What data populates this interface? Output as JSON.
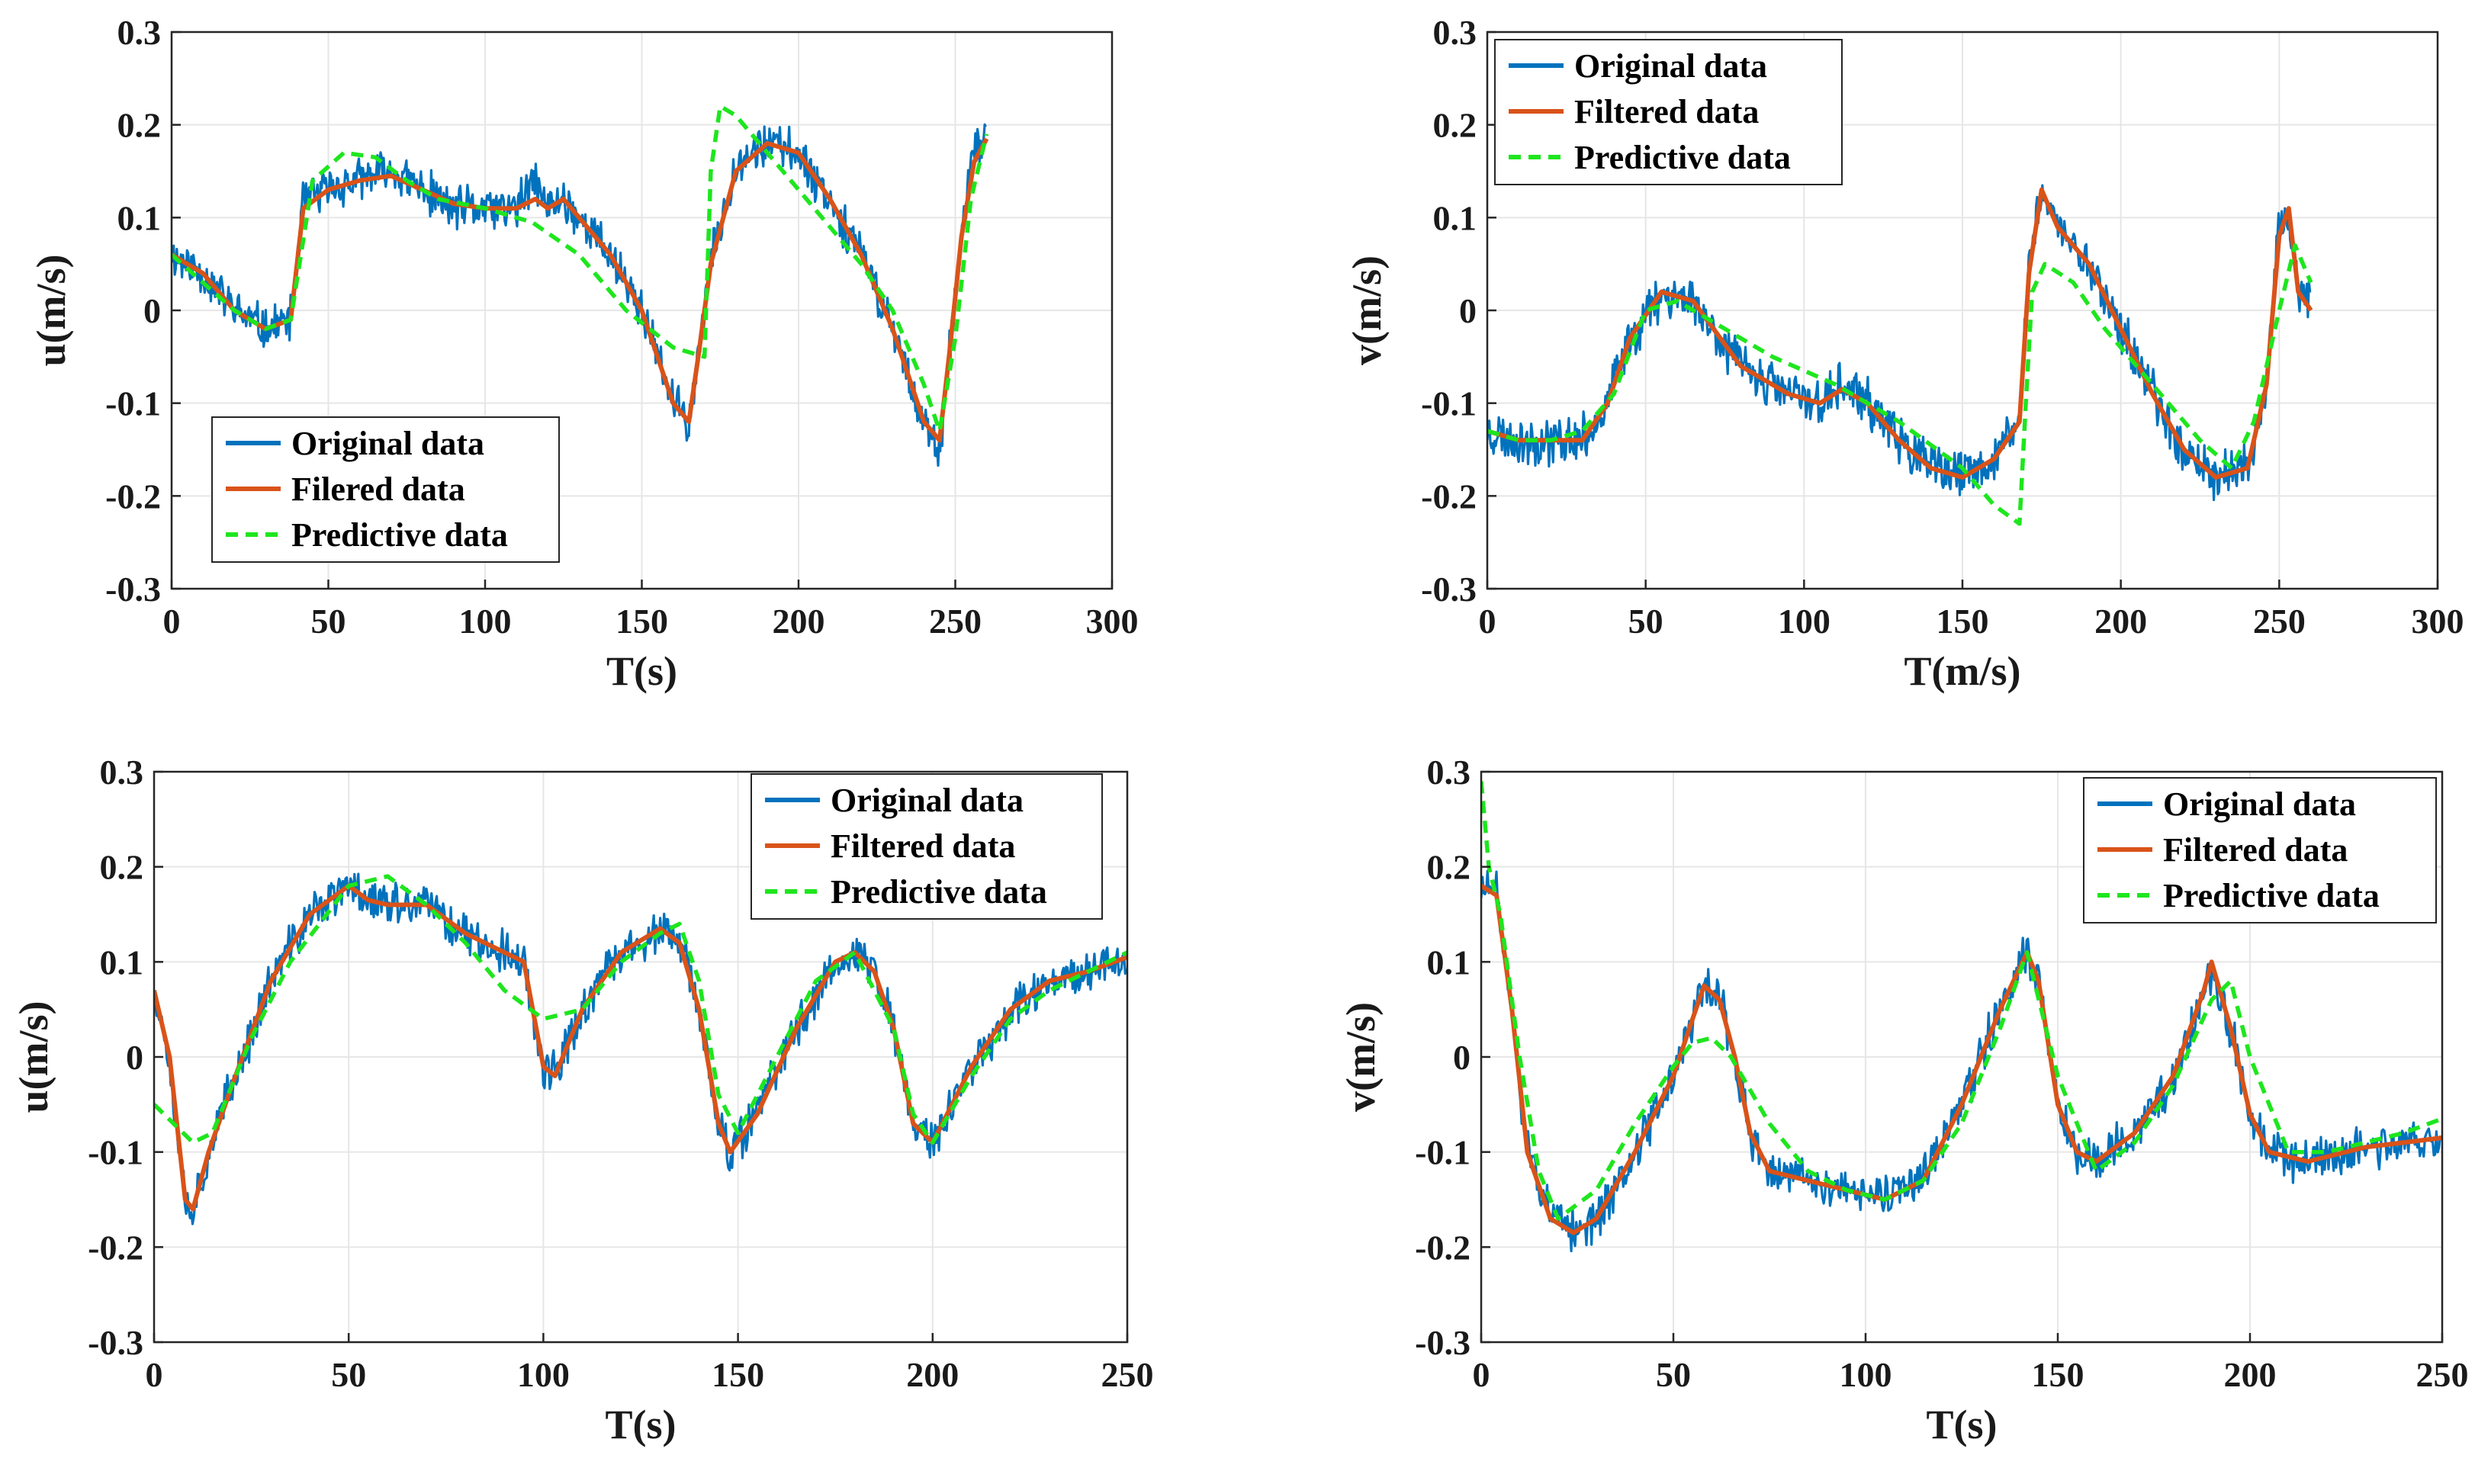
{
  "colors": {
    "original": "#0072bd",
    "filtered": "#d95319",
    "predictive": "#1ee61e",
    "grid": "#e6e6e6",
    "axis": "#262626"
  },
  "chart_data": [
    {
      "type": "line",
      "title": "",
      "xlabel": "T(s)",
      "ylabel": "u(m/s)",
      "xlim": [
        0,
        300
      ],
      "ylim": [
        -0.3,
        0.3
      ],
      "xticks": [
        0,
        50,
        100,
        150,
        200,
        250,
        300
      ],
      "yticks": [
        -0.3,
        -0.2,
        -0.1,
        0,
        0.1,
        0.2,
        0.3
      ],
      "xtick_labels": [
        "0",
        "50",
        "100",
        "150",
        "200",
        "250",
        "300"
      ],
      "ytick_labels": [
        "-0.3",
        "-0.2",
        "-0.1",
        "0",
        "0.1",
        "0.2",
        "0.3"
      ],
      "grid": true,
      "legend_position": "bottom-left",
      "series": [
        {
          "name": "Original data",
          "role": "original",
          "noise": 0.02,
          "seed": 11,
          "x": [
            0,
            10,
            20,
            30,
            38,
            42,
            50,
            60,
            70,
            80,
            90,
            100,
            110,
            116,
            120,
            125,
            130,
            140,
            150,
            160,
            165,
            168,
            172,
            180,
            190,
            200,
            210,
            220,
            230,
            240,
            245,
            248,
            252,
            256,
            260
          ],
          "y": [
            0.06,
            0.04,
            0.0,
            -0.02,
            -0.01,
            0.12,
            0.13,
            0.14,
            0.15,
            0.13,
            0.11,
            0.11,
            0.11,
            0.14,
            0.11,
            0.12,
            0.1,
            0.06,
            0.0,
            -0.1,
            -0.12,
            -0.05,
            0.05,
            0.16,
            0.18,
            0.17,
            0.12,
            0.06,
            -0.02,
            -0.12,
            -0.16,
            -0.05,
            0.08,
            0.17,
            0.19
          ]
        },
        {
          "name": "Filered data",
          "role": "filtered",
          "noise": 0,
          "seed": 0,
          "x": [
            0,
            10,
            20,
            30,
            38,
            42,
            50,
            60,
            70,
            80,
            90,
            100,
            110,
            116,
            120,
            125,
            130,
            140,
            150,
            160,
            165,
            168,
            172,
            180,
            190,
            200,
            210,
            220,
            230,
            240,
            245,
            248,
            252,
            256,
            260
          ],
          "y": [
            0.06,
            0.04,
            0.0,
            -0.02,
            -0.01,
            0.11,
            0.13,
            0.14,
            0.145,
            0.13,
            0.115,
            0.11,
            0.11,
            0.12,
            0.11,
            0.12,
            0.1,
            0.06,
            0.0,
            -0.1,
            -0.12,
            -0.05,
            0.05,
            0.15,
            0.18,
            0.17,
            0.12,
            0.06,
            -0.02,
            -0.12,
            -0.14,
            -0.05,
            0.08,
            0.16,
            0.185
          ]
        },
        {
          "name": "Predictive data",
          "role": "predictive",
          "noise": 0,
          "seed": 0,
          "x": [
            0,
            10,
            20,
            30,
            38,
            45,
            55,
            65,
            75,
            85,
            100,
            115,
            130,
            145,
            160,
            170,
            172,
            175,
            180,
            190,
            200,
            210,
            220,
            230,
            240,
            245,
            250,
            255,
            260
          ],
          "y": [
            0.06,
            0.03,
            0.0,
            -0.02,
            -0.01,
            0.14,
            0.17,
            0.165,
            0.14,
            0.12,
            0.11,
            0.095,
            0.06,
            0.0,
            -0.04,
            -0.05,
            0.15,
            0.22,
            0.21,
            0.17,
            0.13,
            0.09,
            0.05,
            0.0,
            -0.08,
            -0.13,
            -0.03,
            0.12,
            0.19
          ]
        }
      ],
      "legend": [
        "Original data",
        "Filered data",
        "Predictive data"
      ]
    },
    {
      "type": "line",
      "title": "",
      "xlabel": "T(m/s)",
      "ylabel": "v(m/s)",
      "xlim": [
        0,
        300
      ],
      "ylim": [
        -0.3,
        0.3
      ],
      "xticks": [
        0,
        50,
        100,
        150,
        200,
        250,
        300
      ],
      "yticks": [
        -0.3,
        -0.2,
        -0.1,
        0,
        0.1,
        0.2,
        0.3
      ],
      "xtick_labels": [
        "0",
        "50",
        "100",
        "150",
        "200",
        "250",
        "300"
      ],
      "ytick_labels": [
        "-0.3",
        "-0.2",
        "-0.1",
        "0",
        "0.1",
        "0.2",
        "0.3"
      ],
      "grid": true,
      "legend_position": "top-left",
      "series": [
        {
          "name": "Original data",
          "role": "original",
          "noise": 0.022,
          "seed": 23,
          "x": [
            0,
            10,
            20,
            30,
            38,
            45,
            55,
            65,
            80,
            95,
            105,
            112,
            120,
            130,
            140,
            150,
            160,
            168,
            171,
            175,
            180,
            190,
            200,
            210,
            220,
            230,
            240,
            246,
            250,
            253,
            256,
            260
          ],
          "y": [
            -0.13,
            -0.14,
            -0.14,
            -0.14,
            -0.1,
            -0.03,
            0.02,
            0.01,
            -0.06,
            -0.09,
            -0.1,
            -0.08,
            -0.1,
            -0.14,
            -0.17,
            -0.18,
            -0.16,
            -0.12,
            0.05,
            0.13,
            0.09,
            0.05,
            -0.02,
            -0.09,
            -0.15,
            -0.18,
            -0.17,
            -0.08,
            0.1,
            0.1,
            0.02,
            0.0
          ]
        },
        {
          "name": "Filtered data",
          "role": "filtered",
          "noise": 0,
          "seed": 0,
          "x": [
            0,
            10,
            20,
            30,
            38,
            45,
            55,
            65,
            80,
            95,
            105,
            112,
            120,
            130,
            140,
            150,
            160,
            168,
            171,
            175,
            180,
            190,
            200,
            210,
            220,
            230,
            240,
            246,
            250,
            253,
            256,
            260
          ],
          "y": [
            -0.13,
            -0.14,
            -0.14,
            -0.14,
            -0.1,
            -0.03,
            0.02,
            0.01,
            -0.06,
            -0.09,
            -0.1,
            -0.085,
            -0.1,
            -0.14,
            -0.17,
            -0.18,
            -0.16,
            -0.12,
            0.04,
            0.13,
            0.09,
            0.05,
            -0.02,
            -0.09,
            -0.15,
            -0.18,
            -0.17,
            -0.08,
            0.08,
            0.11,
            0.02,
            0.0
          ]
        },
        {
          "name": "Predictive data",
          "role": "predictive",
          "noise": 0,
          "seed": 0,
          "x": [
            0,
            10,
            20,
            30,
            40,
            50,
            60,
            75,
            90,
            110,
            130,
            150,
            160,
            168,
            170,
            172,
            176,
            185,
            195,
            210,
            225,
            235,
            242,
            250,
            255,
            260
          ],
          "y": [
            -0.13,
            -0.14,
            -0.14,
            -0.13,
            -0.09,
            0.0,
            0.01,
            -0.02,
            -0.05,
            -0.08,
            -0.12,
            -0.17,
            -0.21,
            -0.23,
            -0.1,
            0.02,
            0.05,
            0.03,
            -0.02,
            -0.08,
            -0.14,
            -0.17,
            -0.12,
            0.0,
            0.07,
            0.03
          ]
        }
      ],
      "legend": [
        "Original data",
        "Filtered data",
        "Predictive data"
      ]
    },
    {
      "type": "line",
      "title": "",
      "xlabel": "T(s)",
      "ylabel": "u(m/s)",
      "xlim": [
        0,
        250
      ],
      "ylim": [
        -0.3,
        0.3
      ],
      "xticks": [
        0,
        50,
        100,
        150,
        200,
        250
      ],
      "yticks": [
        -0.3,
        -0.2,
        -0.1,
        0,
        0.1,
        0.2,
        0.3
      ],
      "xtick_labels": [
        "0",
        "50",
        "100",
        "150",
        "200",
        "250"
      ],
      "ytick_labels": [
        "-0.3",
        "-0.2",
        "-0.1",
        "0",
        "0.1",
        "0.2",
        "0.3"
      ],
      "grid": true,
      "legend_position": "top-right",
      "series": [
        {
          "name": "Original data",
          "role": "original",
          "noise": 0.02,
          "seed": 37,
          "x": [
            0,
            4,
            8,
            10,
            14,
            20,
            30,
            40,
            50,
            55,
            60,
            70,
            80,
            90,
            95,
            100,
            103,
            110,
            120,
            130,
            135,
            140,
            145,
            148,
            155,
            165,
            175,
            180,
            185,
            190,
            195,
            200,
            210,
            220,
            230,
            240,
            250
          ],
          "y": [
            0.07,
            0.0,
            -0.15,
            -0.16,
            -0.1,
            -0.03,
            0.08,
            0.15,
            0.18,
            0.17,
            0.16,
            0.16,
            0.13,
            0.11,
            0.1,
            -0.01,
            -0.02,
            0.05,
            0.11,
            0.13,
            0.12,
            0.05,
            -0.07,
            -0.1,
            -0.06,
            0.03,
            0.1,
            0.11,
            0.09,
            0.03,
            -0.07,
            -0.09,
            -0.01,
            0.05,
            0.08,
            0.09,
            0.105
          ]
        },
        {
          "name": "Filtered data",
          "role": "filtered",
          "noise": 0,
          "seed": 0,
          "x": [
            0,
            4,
            8,
            10,
            14,
            20,
            30,
            40,
            50,
            55,
            60,
            70,
            80,
            90,
            95,
            100,
            103,
            110,
            120,
            130,
            135,
            140,
            145,
            148,
            155,
            165,
            175,
            180,
            185,
            190,
            195,
            200,
            210,
            220,
            230,
            240,
            250
          ],
          "y": [
            0.07,
            0.0,
            -0.15,
            -0.16,
            -0.1,
            -0.03,
            0.08,
            0.15,
            0.18,
            0.165,
            0.16,
            0.16,
            0.13,
            0.11,
            0.1,
            -0.01,
            -0.02,
            0.05,
            0.11,
            0.135,
            0.12,
            0.05,
            -0.07,
            -0.1,
            -0.06,
            0.03,
            0.1,
            0.11,
            0.09,
            0.03,
            -0.07,
            -0.09,
            -0.01,
            0.05,
            0.08,
            0.09,
            0.105
          ]
        },
        {
          "name": "Predictive data",
          "role": "predictive",
          "noise": 0,
          "seed": 0,
          "x": [
            0,
            5,
            10,
            15,
            25,
            35,
            50,
            60,
            70,
            80,
            90,
            100,
            110,
            120,
            130,
            135,
            140,
            145,
            150,
            160,
            170,
            180,
            190,
            195,
            200,
            210,
            220,
            230,
            240,
            250
          ],
          "y": [
            -0.05,
            -0.07,
            -0.09,
            -0.08,
            0.02,
            0.1,
            0.18,
            0.19,
            0.16,
            0.12,
            0.07,
            0.04,
            0.05,
            0.1,
            0.13,
            0.14,
            0.08,
            -0.04,
            -0.08,
            0.0,
            0.08,
            0.11,
            0.03,
            -0.06,
            -0.09,
            -0.02,
            0.04,
            0.07,
            0.09,
            0.11
          ]
        }
      ],
      "legend": [
        "Original data",
        "Filtered data",
        "Predictive data"
      ]
    },
    {
      "type": "line",
      "title": "",
      "xlabel": "T(s)",
      "ylabel": "v(m/s)",
      "xlim": [
        0,
        250
      ],
      "ylim": [
        -0.3,
        0.3
      ],
      "xticks": [
        0,
        50,
        100,
        150,
        200,
        250
      ],
      "yticks": [
        -0.3,
        -0.2,
        -0.1,
        0,
        0.1,
        0.2,
        0.3
      ],
      "xtick_labels": [
        "0",
        "50",
        "100",
        "150",
        "200",
        "250"
      ],
      "ytick_labels": [
        "-0.3",
        "-0.2",
        "-0.1",
        "0",
        "0.1",
        "0.2",
        "0.3"
      ],
      "grid": true,
      "legend_position": "top-right",
      "series": [
        {
          "name": "Original data",
          "role": "original",
          "noise": 0.02,
          "seed": 51,
          "x": [
            0,
            4,
            8,
            12,
            18,
            24,
            30,
            40,
            50,
            55,
            58,
            62,
            66,
            70,
            75,
            85,
            95,
            105,
            115,
            125,
            135,
            142,
            145,
            150,
            155,
            160,
            170,
            180,
            188,
            190,
            195,
            200,
            205,
            215,
            230,
            250
          ],
          "y": [
            0.18,
            0.17,
            0.05,
            -0.1,
            -0.17,
            -0.185,
            -0.17,
            -0.1,
            -0.02,
            0.04,
            0.075,
            0.06,
            0.0,
            -0.08,
            -0.12,
            -0.13,
            -0.14,
            -0.15,
            -0.13,
            -0.05,
            0.05,
            0.11,
            0.08,
            -0.05,
            -0.1,
            -0.11,
            -0.08,
            -0.02,
            0.07,
            0.09,
            0.03,
            -0.06,
            -0.1,
            -0.11,
            -0.095,
            -0.085
          ]
        },
        {
          "name": "Filtered data",
          "role": "filtered",
          "noise": 0,
          "seed": 0,
          "x": [
            0,
            4,
            8,
            12,
            18,
            24,
            30,
            40,
            50,
            55,
            58,
            62,
            66,
            70,
            75,
            85,
            95,
            105,
            115,
            125,
            135,
            142,
            145,
            150,
            155,
            160,
            170,
            180,
            188,
            190,
            195,
            200,
            205,
            215,
            230,
            250
          ],
          "y": [
            0.18,
            0.17,
            0.05,
            -0.1,
            -0.17,
            -0.185,
            -0.17,
            -0.1,
            -0.02,
            0.04,
            0.075,
            0.06,
            0.0,
            -0.08,
            -0.12,
            -0.13,
            -0.14,
            -0.15,
            -0.13,
            -0.05,
            0.05,
            0.11,
            0.08,
            -0.05,
            -0.1,
            -0.11,
            -0.08,
            -0.02,
            0.07,
            0.1,
            0.03,
            -0.06,
            -0.1,
            -0.11,
            -0.095,
            -0.085
          ]
        },
        {
          "name": "Predictive data",
          "role": "predictive",
          "noise": 0,
          "seed": 0,
          "x": [
            0,
            2,
            5,
            10,
            15,
            20,
            30,
            40,
            50,
            55,
            60,
            65,
            75,
            85,
            95,
            105,
            115,
            125,
            135,
            142,
            150,
            160,
            170,
            180,
            190,
            195,
            200,
            210,
            220,
            230,
            240,
            250
          ],
          "y": [
            0.29,
            0.2,
            0.15,
            0.0,
            -0.12,
            -0.17,
            -0.14,
            -0.07,
            -0.01,
            0.015,
            0.02,
            0.0,
            -0.07,
            -0.12,
            -0.14,
            -0.15,
            -0.13,
            -0.07,
            0.03,
            0.11,
            -0.02,
            -0.12,
            -0.09,
            -0.03,
            0.06,
            0.08,
            0.0,
            -0.1,
            -0.1,
            -0.09,
            -0.08,
            -0.065
          ]
        }
      ],
      "legend": [
        "Original data",
        "Filtered data",
        "Predictive data"
      ]
    }
  ]
}
